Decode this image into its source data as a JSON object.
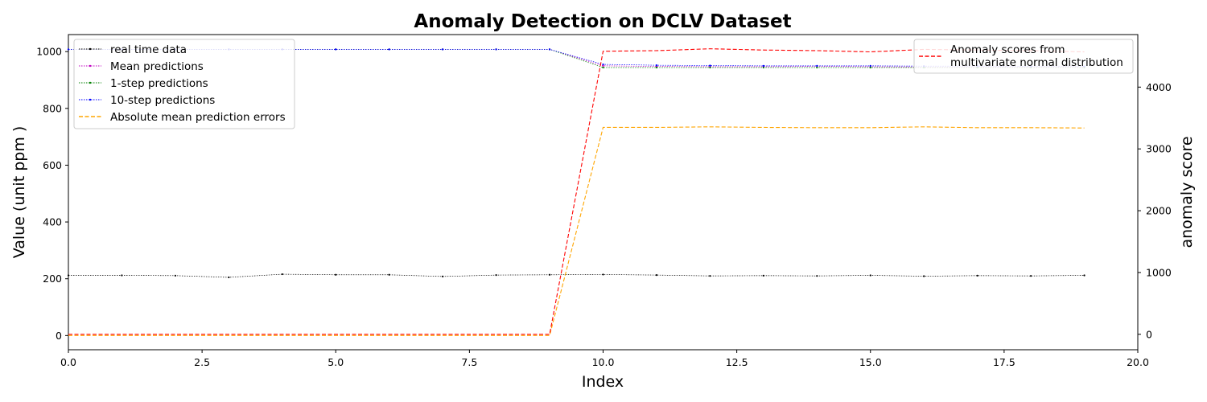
{
  "chart_data": {
    "type": "line",
    "title": "Anomaly Detection on DCLV Dataset",
    "xlabel": "Index",
    "ylabel": "Value (unit ppm )",
    "y2label": "anomaly score",
    "xlim": [
      0,
      20
    ],
    "ylim": [
      -50,
      1060
    ],
    "y2lim": [
      -250,
      4850
    ],
    "x_ticks": [
      "0.0",
      "2.5",
      "5.0",
      "7.5",
      "10.0",
      "12.5",
      "15.0",
      "17.5",
      "20.0"
    ],
    "y_ticks": [
      "0",
      "200",
      "400",
      "600",
      "800",
      "1000"
    ],
    "y2_ticks": [
      "0",
      "1000",
      "2000",
      "3000",
      "4000"
    ],
    "x": [
      0,
      1,
      2,
      3,
      4,
      5,
      6,
      7,
      8,
      9,
      10,
      11,
      12,
      13,
      14,
      15,
      16,
      17,
      18,
      19
    ],
    "series": [
      {
        "name": "real time data",
        "axis": "left",
        "color": "#000000",
        "style": "dotted",
        "values": [
          212,
          212,
          211,
          205,
          216,
          214,
          214,
          208,
          213,
          214,
          215,
          213,
          210,
          211,
          210,
          212,
          209,
          211,
          210,
          212
        ]
      },
      {
        "name": "Mean predictions",
        "axis": "left",
        "color": "#bf00bf",
        "style": "dotted",
        "values": [
          1008,
          1008,
          1008,
          1008,
          1008,
          1008,
          1008,
          1008,
          1008,
          1008,
          950,
          948,
          947,
          947,
          948,
          947,
          946,
          946,
          946,
          946
        ]
      },
      {
        "name": "1-step predictions",
        "axis": "left",
        "color": "#008000",
        "style": "dotted",
        "values": [
          1008,
          1008,
          1008,
          1008,
          1008,
          1008,
          1008,
          1008,
          1008,
          1008,
          944,
          944,
          944,
          944,
          944,
          944,
          944,
          944,
          944,
          944
        ]
      },
      {
        "name": "10-step predictions",
        "axis": "left",
        "color": "#0000ff",
        "style": "dotted",
        "values": [
          1008,
          1008,
          1008,
          1008,
          1008,
          1008,
          1008,
          1008,
          1008,
          1008,
          955,
          952,
          951,
          950,
          950,
          950,
          949,
          949,
          948,
          948
        ]
      },
      {
        "name": "Absolute mean prediction errors",
        "axis": "left",
        "color": "#ffa500",
        "style": "dashed",
        "values": [
          0,
          0,
          0,
          0,
          0,
          0,
          0,
          0,
          0,
          0,
          733,
          733,
          735,
          733,
          732,
          732,
          735,
          732,
          732,
          731
        ]
      },
      {
        "name": "Anomaly scores from\nmultivariate normal distribution",
        "axis": "right",
        "color": "#ff0000",
        "style": "dashed",
        "values": [
          0,
          0,
          0,
          0,
          0,
          0,
          0,
          0,
          0,
          0,
          4580,
          4590,
          4620,
          4600,
          4590,
          4570,
          4610,
          4600,
          4590,
          4570
        ]
      }
    ],
    "legends": [
      {
        "placement": "upper-left",
        "entries": [
          "real time data",
          "Mean predictions",
          "1-step predictions",
          "10-step predictions",
          "Absolute mean prediction errors"
        ]
      },
      {
        "placement": "upper-right",
        "entries": [
          "Anomaly scores from",
          "multivariate normal distribution"
        ]
      }
    ],
    "grid": false
  }
}
